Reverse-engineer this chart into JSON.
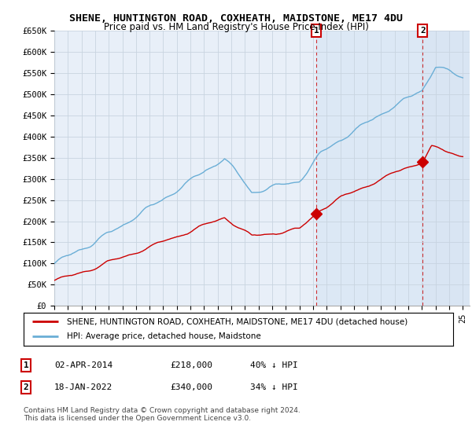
{
  "title": "SHENE, HUNTINGTON ROAD, COXHEATH, MAIDSTONE, ME17 4DU",
  "subtitle": "Price paid vs. HM Land Registry's House Price Index (HPI)",
  "ylabel_ticks": [
    "£0",
    "£50K",
    "£100K",
    "£150K",
    "£200K",
    "£250K",
    "£300K",
    "£350K",
    "£400K",
    "£450K",
    "£500K",
    "£550K",
    "£600K",
    "£650K"
  ],
  "ylim": [
    0,
    650000
  ],
  "ytick_values": [
    0,
    50000,
    100000,
    150000,
    200000,
    250000,
    300000,
    350000,
    400000,
    450000,
    500000,
    550000,
    600000,
    650000
  ],
  "xlim_start": 1995.0,
  "xlim_end": 2025.5,
  "sale1_x": 2014.25,
  "sale1_y": 218000,
  "sale1_label": "1",
  "sale2_x": 2022.05,
  "sale2_y": 340000,
  "sale2_label": "2",
  "hpi_color": "#6aaed6",
  "price_color": "#cc0000",
  "background_color": "#dce8f5",
  "background_color_left": "#e8eff8",
  "grid_color": "#c8d4e0",
  "legend_entry1": "SHENE, HUNTINGTON ROAD, COXHEATH, MAIDSTONE, ME17 4DU (detached house)",
  "legend_entry2": "HPI: Average price, detached house, Maidstone",
  "table_row1": [
    "1",
    "02-APR-2014",
    "£218,000",
    "40% ↓ HPI"
  ],
  "table_row2": [
    "2",
    "18-JAN-2022",
    "£340,000",
    "34% ↓ HPI"
  ],
  "footnote": "Contains HM Land Registry data © Crown copyright and database right 2024.\nThis data is licensed under the Open Government Licence v3.0.",
  "title_fontsize": 9.5,
  "subtitle_fontsize": 8.5,
  "tick_fontsize": 7.5
}
